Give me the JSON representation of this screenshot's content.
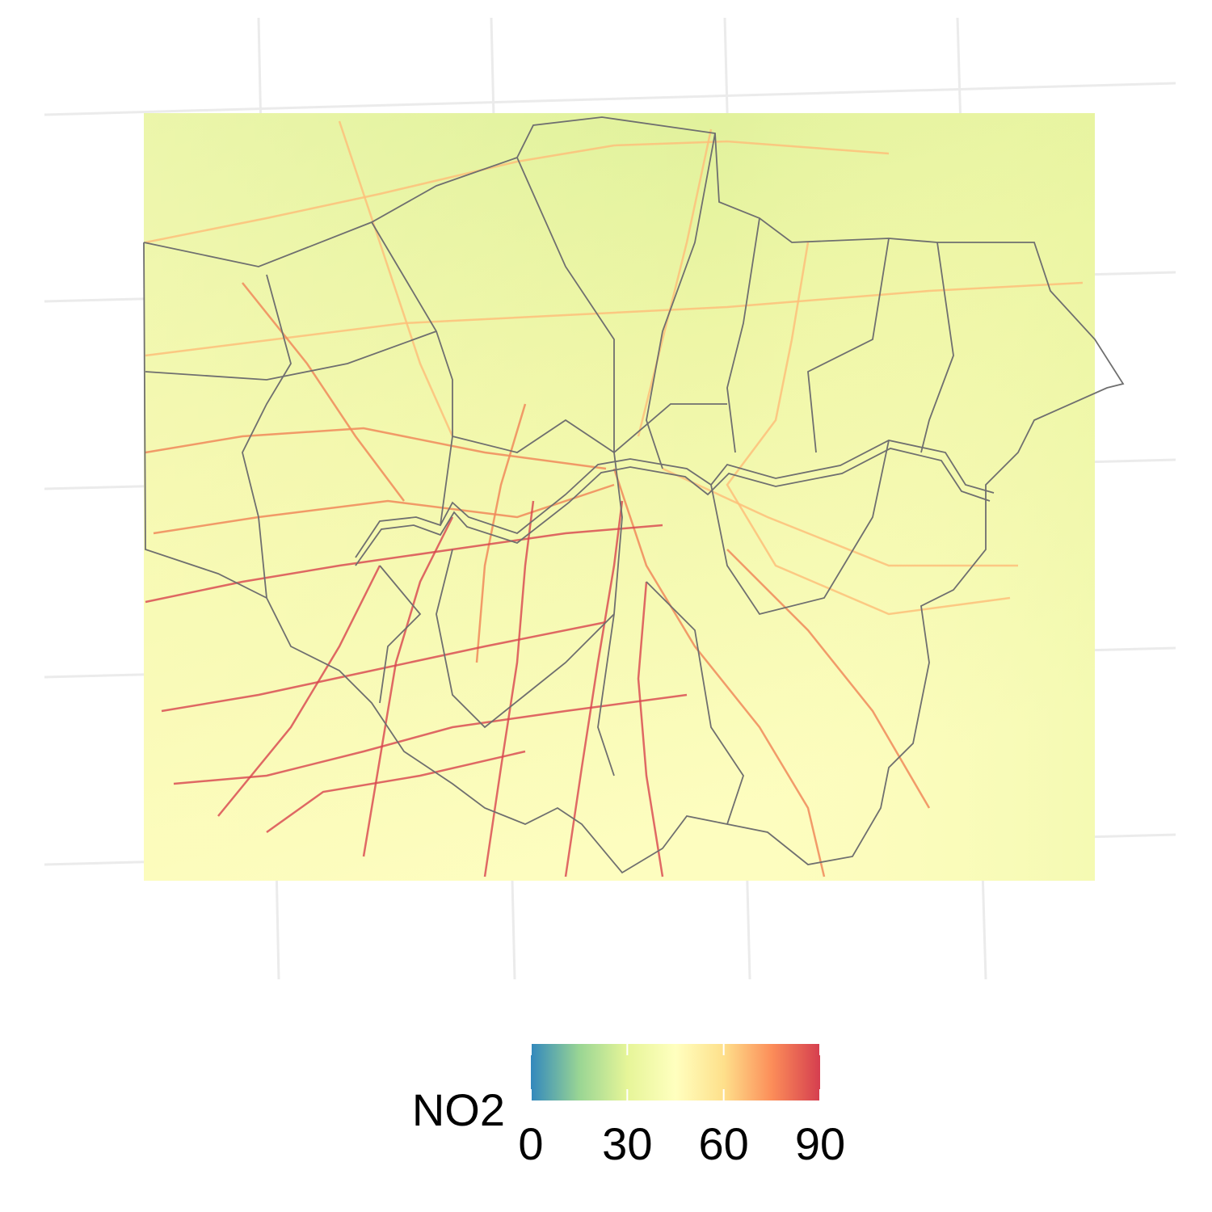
{
  "legend": {
    "title": "NO2",
    "limits": [
      0,
      90
    ],
    "ticks": [
      0,
      30,
      60,
      90
    ],
    "colors": [
      "#3288bd",
      "#99d594",
      "#e6f598",
      "#ffffbf",
      "#fee08b",
      "#fc8d59",
      "#d53e4f"
    ]
  }
}
